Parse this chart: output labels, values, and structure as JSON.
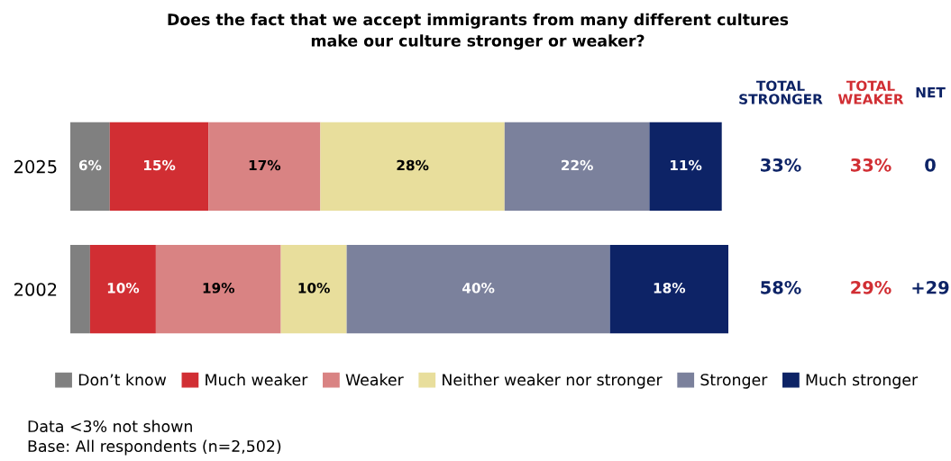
{
  "chart_data": {
    "type": "bar",
    "orientation": "horizontal",
    "stacked": true,
    "title": "Does the fact that we accept immigrants from many different cultures\nmake our culture stronger or weaker?",
    "categories": [
      "2025",
      "2002"
    ],
    "series": [
      {
        "name": "Don’t know",
        "color": "#808080",
        "values": [
          6,
          3
        ],
        "value_labels": [
          "6%",
          null
        ]
      },
      {
        "name": "Much weaker",
        "color": "#d12e33",
        "values": [
          15,
          10
        ],
        "value_labels": [
          "15%",
          "10%"
        ]
      },
      {
        "name": "Weaker",
        "color": "#d98383",
        "values": [
          17,
          19
        ],
        "value_labels": [
          "17%",
          "19%"
        ]
      },
      {
        "name": "Neither weaker nor stronger",
        "color": "#e8de9c",
        "values": [
          28,
          10
        ],
        "value_labels": [
          "28%",
          "10%"
        ]
      },
      {
        "name": "Stronger",
        "color": "#7b819c",
        "values": [
          22,
          40
        ],
        "value_labels": [
          "22%",
          "40%"
        ]
      },
      {
        "name": "Much stronger",
        "color": "#0d2366",
        "values": [
          11,
          18
        ],
        "value_labels": [
          "11%",
          "18%"
        ]
      }
    ],
    "legend": "bottom",
    "annotations": [
      "TOTAL\nSTRONGER",
      "TOTAL\nWEAKER",
      "NET",
      "33%",
      "33%",
      "0",
      "58%",
      "29%",
      "+29",
      "Data <3% not shown",
      "Base: All respondents (n=2,502)"
    ]
  }
}
